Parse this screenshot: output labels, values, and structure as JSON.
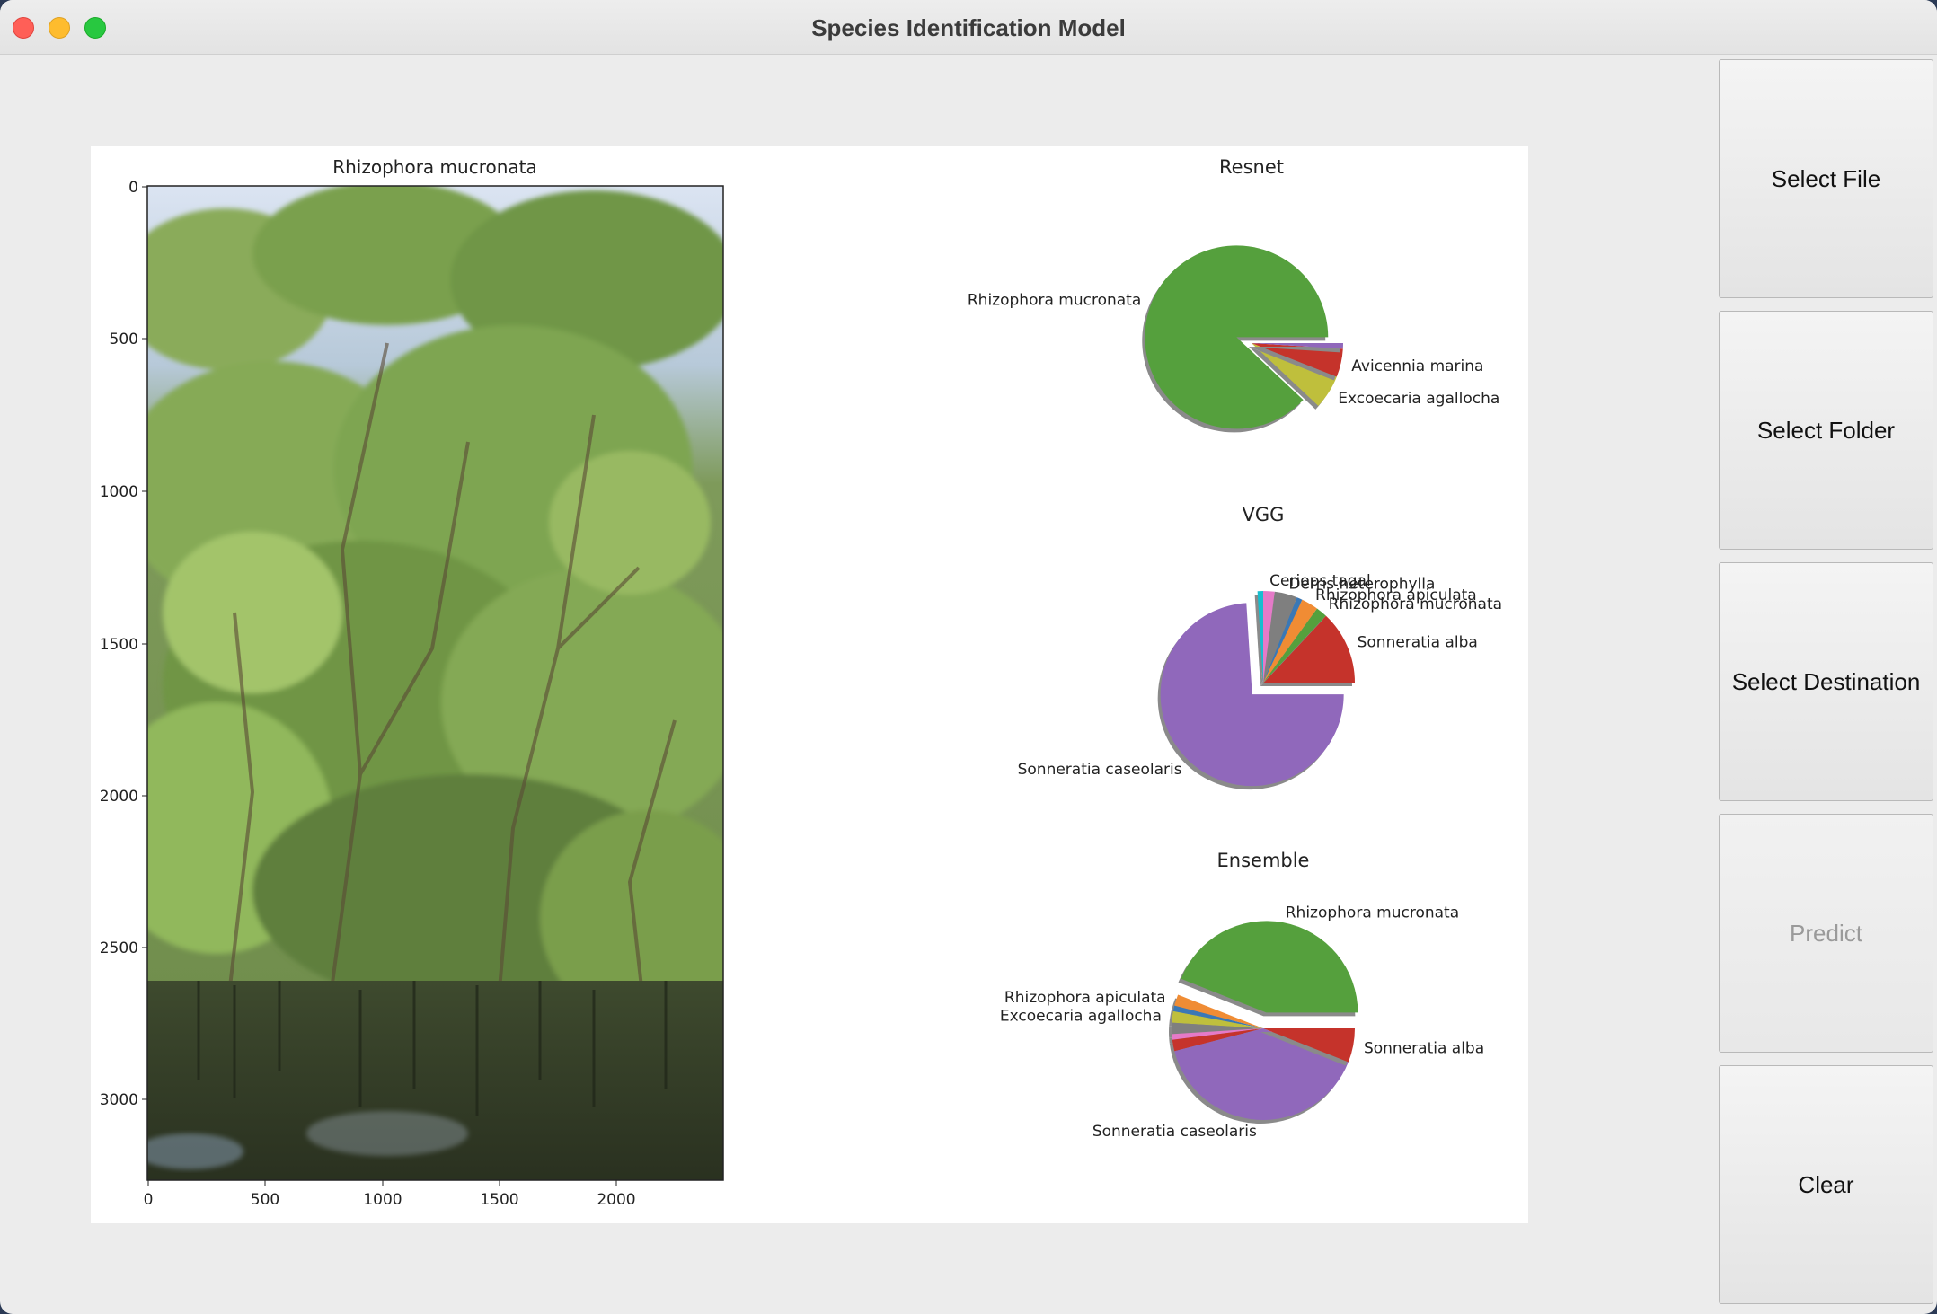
{
  "window": {
    "title": "Species Identification Model"
  },
  "buttons": {
    "select_file": "Select File",
    "select_folder": "Select Folder",
    "select_destination": "Select Destination",
    "predict": "Predict",
    "clear": "Clear"
  },
  "image_panel": {
    "title": "Rhizophora mucronata",
    "y_ticks": [
      "0",
      "500",
      "1000",
      "1500",
      "2000",
      "2500",
      "3000"
    ],
    "x_ticks": [
      "0",
      "500",
      "1000",
      "1500",
      "2000"
    ]
  },
  "colors": {
    "green": "#55a03d",
    "red": "#c5332b",
    "olive": "#bfbf3c",
    "purple": "#9068bb",
    "orange": "#f08c34",
    "blue": "#3a78b6",
    "gray": "#7f7f7f",
    "pink": "#e57ac8",
    "brown": "#8c564b",
    "cyan": "#17becf"
  },
  "chart_data": [
    {
      "type": "pie",
      "title": "Resnet",
      "slices": [
        {
          "label": "Rhizophora mucronata",
          "value": 88,
          "color": "green",
          "explode": true
        },
        {
          "label": "Excoecaria agallocha",
          "value": 6,
          "color": "olive"
        },
        {
          "label": "Avicennia marina",
          "value": 5,
          "color": "red"
        },
        {
          "label": "",
          "value": 1,
          "color": "purple"
        }
      ]
    },
    {
      "type": "pie",
      "title": "VGG",
      "slices": [
        {
          "label": "Sonneratia alba",
          "value": 13,
          "color": "red"
        },
        {
          "label": "Rhizophora mucronata",
          "value": 2,
          "color": "green"
        },
        {
          "label": "Rhizophora apiculata",
          "value": 3,
          "color": "orange"
        },
        {
          "label": "",
          "value": 1,
          "color": "blue"
        },
        {
          "label": "Derris heterophylla",
          "value": 4,
          "color": "gray"
        },
        {
          "label": "Ceriops tagal",
          "value": 2,
          "color": "pink"
        },
        {
          "label": "",
          "value": 1,
          "color": "cyan"
        },
        {
          "label": "Sonneratia caseolaris",
          "value": 74,
          "color": "purple",
          "explode": true
        }
      ]
    },
    {
      "type": "pie",
      "title": "Ensemble",
      "slices": [
        {
          "label": "Rhizophora mucronata",
          "value": 44,
          "color": "green",
          "explode": true
        },
        {
          "label": "Rhizophora apiculata",
          "value": 2,
          "color": "orange"
        },
        {
          "label": "",
          "value": 1,
          "color": "blue"
        },
        {
          "label": "Excoecaria agallocha",
          "value": 2,
          "color": "olive"
        },
        {
          "label": "",
          "value": 2,
          "color": "gray"
        },
        {
          "label": "",
          "value": 1,
          "color": "pink"
        },
        {
          "label": "",
          "value": 2,
          "color": "red"
        },
        {
          "label": "Sonneratia caseolaris",
          "value": 40,
          "color": "purple"
        },
        {
          "label": "Sonneratia alba",
          "value": 6,
          "color": "red"
        }
      ]
    }
  ]
}
